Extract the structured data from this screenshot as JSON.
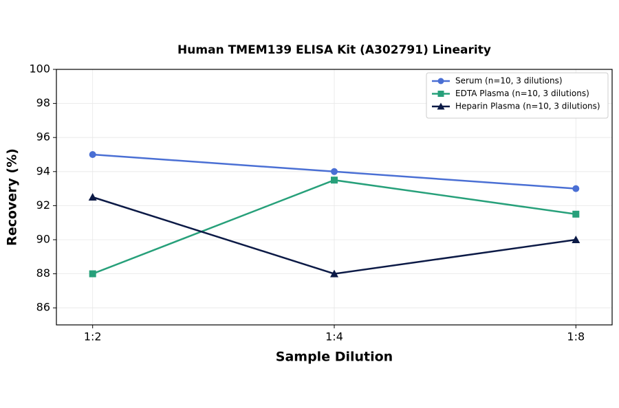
{
  "chart_data": {
    "type": "line",
    "title": "Human TMEM139 ELISA Kit (A302791) Linearity",
    "x_label": "Sample Dilution",
    "y_label": "Recovery (%)",
    "categories": [
      "1:2",
      "1:4",
      "1:8"
    ],
    "series": [
      {
        "name": "Serum (n=10, 3 dilutions)",
        "color": "#4a6fd4",
        "marker": "circle",
        "values": [
          95,
          94,
          93
        ]
      },
      {
        "name": "EDTA Plasma (n=10, 3 dilutions)",
        "color": "#27a07a",
        "marker": "square",
        "values": [
          88,
          93.5,
          91.5
        ]
      },
      {
        "name": "Heparin Plasma (n=10, 3 dilutions)",
        "color": "#0c1a46",
        "marker": "triangle",
        "values": [
          92.5,
          88,
          90
        ]
      }
    ],
    "ylim": [
      85,
      100
    ],
    "yticks": [
      86,
      88,
      90,
      92,
      94,
      96,
      98,
      100
    ],
    "grid": true,
    "legend": "upper right"
  }
}
